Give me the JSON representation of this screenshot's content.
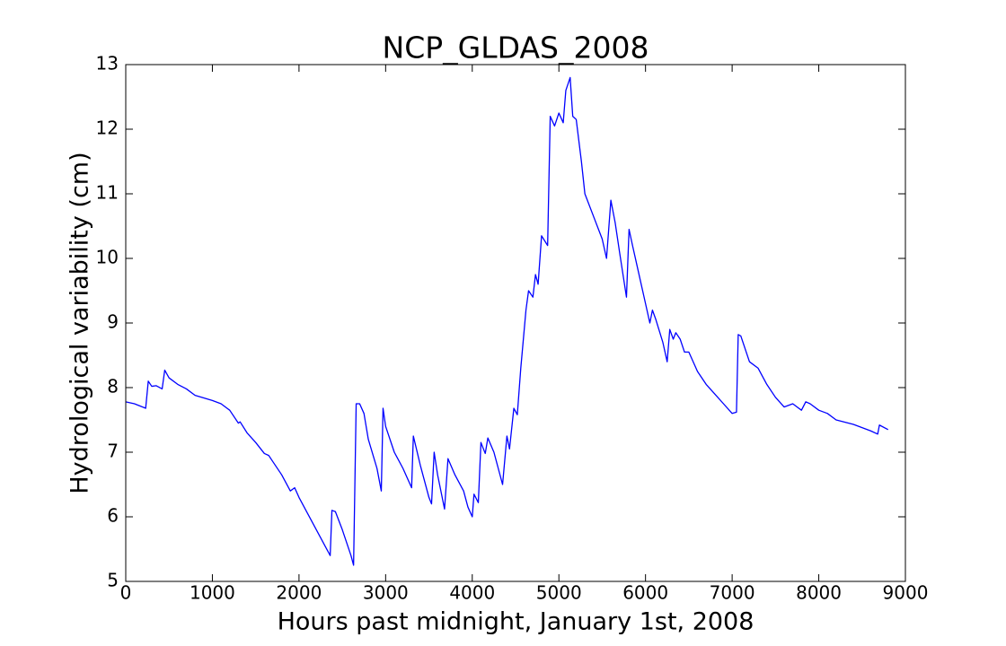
{
  "chart_data": {
    "type": "line",
    "title": "NCP_GLDAS_2008",
    "x_label": "Hours past midnight, January 1st, 2008",
    "y_label": "Hydrological variability (cm)",
    "color": "#0000ff",
    "xlim": [
      0,
      9000
    ],
    "xticks": [
      0,
      1000,
      2000,
      3000,
      4000,
      5000,
      6000,
      7000,
      8000,
      9000
    ],
    "ylim": [
      5,
      13
    ],
    "yticks": [
      5,
      6,
      7,
      8,
      9,
      10,
      11,
      12,
      13
    ],
    "x": [
      0,
      100,
      230,
      260,
      300,
      350,
      420,
      450,
      500,
      600,
      700,
      800,
      1000,
      1100,
      1200,
      1300,
      1320,
      1400,
      1500,
      1600,
      1650,
      1700,
      1800,
      1900,
      1950,
      2000,
      2100,
      2200,
      2300,
      2360,
      2380,
      2420,
      2500,
      2600,
      2630,
      2660,
      2700,
      2750,
      2800,
      2900,
      2950,
      2970,
      3000,
      3100,
      3200,
      3300,
      3320,
      3400,
      3500,
      3530,
      3560,
      3600,
      3680,
      3720,
      3800,
      3900,
      3950,
      4000,
      4020,
      4070,
      4100,
      4150,
      4180,
      4250,
      4300,
      4350,
      4400,
      4430,
      4480,
      4520,
      4560,
      4620,
      4650,
      4700,
      4730,
      4760,
      4800,
      4870,
      4900,
      4950,
      5000,
      5050,
      5080,
      5130,
      5160,
      5200,
      5260,
      5300,
      5400,
      5500,
      5550,
      5600,
      5650,
      5700,
      5780,
      5810,
      5850,
      5900,
      6000,
      6050,
      6080,
      6120,
      6200,
      6250,
      6280,
      6320,
      6350,
      6400,
      6450,
      6500,
      6600,
      6700,
      6800,
      6900,
      7000,
      7050,
      7070,
      7100,
      7200,
      7300,
      7400,
      7500,
      7600,
      7700,
      7800,
      7850,
      7900,
      8000,
      8100,
      8200,
      8400,
      8600,
      8680,
      8700,
      8800
    ],
    "y": [
      7.78,
      7.75,
      7.68,
      8.1,
      8.02,
      8.03,
      7.98,
      8.27,
      8.15,
      8.05,
      7.98,
      7.88,
      7.8,
      7.75,
      7.65,
      7.45,
      7.47,
      7.3,
      7.15,
      6.98,
      6.95,
      6.85,
      6.65,
      6.4,
      6.45,
      6.3,
      6.05,
      5.8,
      5.55,
      5.4,
      6.1,
      6.08,
      5.8,
      5.4,
      5.25,
      7.75,
      7.75,
      7.6,
      7.2,
      6.75,
      6.4,
      7.68,
      7.4,
      7.0,
      6.75,
      6.45,
      7.25,
      6.8,
      6.3,
      6.2,
      7.0,
      6.65,
      6.12,
      6.9,
      6.65,
      6.4,
      6.15,
      6.0,
      6.35,
      6.22,
      7.15,
      6.98,
      7.22,
      7.0,
      6.75,
      6.5,
      7.25,
      7.05,
      7.68,
      7.58,
      8.3,
      9.2,
      9.5,
      9.4,
      9.75,
      9.6,
      10.35,
      10.2,
      12.2,
      12.05,
      12.25,
      12.1,
      12.6,
      12.8,
      12.2,
      12.15,
      11.5,
      11.0,
      10.65,
      10.3,
      10.0,
      10.9,
      10.55,
      10.1,
      9.4,
      10.45,
      10.2,
      9.9,
      9.3,
      9.0,
      9.2,
      9.05,
      8.7,
      8.4,
      8.9,
      8.75,
      8.85,
      8.75,
      8.55,
      8.55,
      8.25,
      8.05,
      7.9,
      7.75,
      7.6,
      7.62,
      8.82,
      8.8,
      8.4,
      8.3,
      8.05,
      7.85,
      7.7,
      7.75,
      7.65,
      7.78,
      7.75,
      7.65,
      7.6,
      7.5,
      7.43,
      7.33,
      7.28,
      7.42,
      7.35
    ]
  }
}
